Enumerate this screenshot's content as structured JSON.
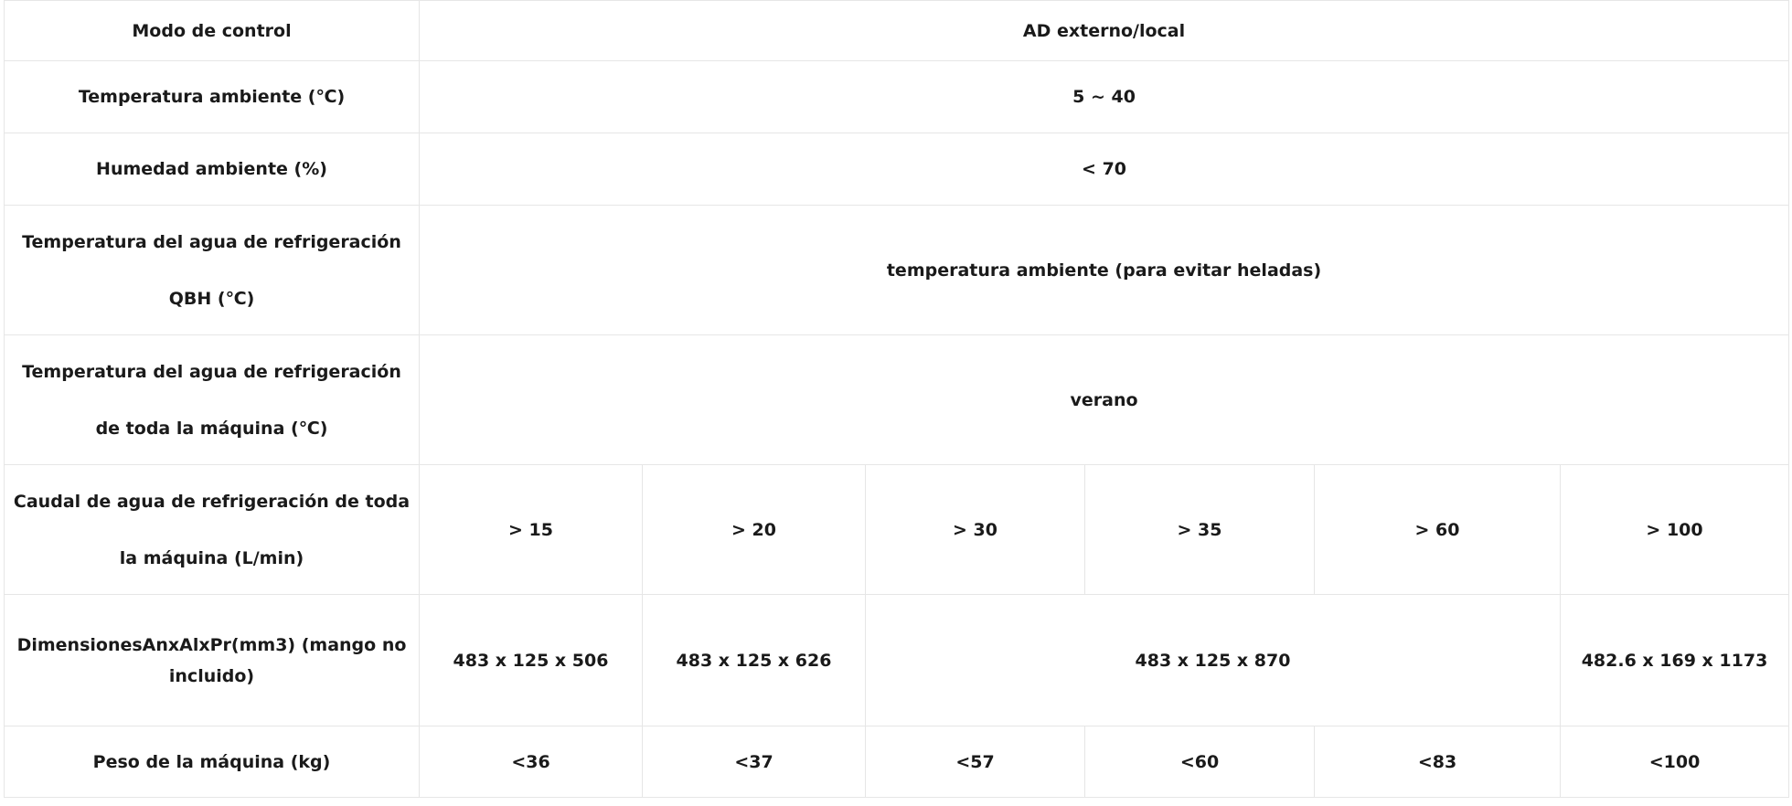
{
  "table": {
    "rows": [
      {
        "label": "Modo de control",
        "values": [
          "AD externo/local"
        ]
      },
      {
        "label": "Temperatura ambiente (℃)",
        "values": [
          "5 ~ 40"
        ]
      },
      {
        "label": "Humedad ambiente  (%)",
        "values": [
          "< 70"
        ]
      },
      {
        "label": "Temperatura del agua de refrigeración QBH (℃)",
        "values": [
          "temperatura ambiente (para evitar heladas)"
        ]
      },
      {
        "label": "Temperatura del agua de refrigeración de toda la máquina (℃)",
        "values": [
          "verano"
        ]
      },
      {
        "label": "Caudal de agua de refrigeración de toda la máquina (L/min)",
        "values": [
          "> 15",
          "> 20",
          "> 30",
          "> 35",
          "> 60",
          "> 100"
        ]
      },
      {
        "label": "DimensionesAnxAlxPr(mm3) (mango no incluido)",
        "values": [
          "483 x 125 x 506",
          "483 x 125 x 626",
          "483 x 125 x 870",
          "482.6 x 169 x 1173"
        ]
      },
      {
        "label": "Peso de la máquina (kg)",
        "values": [
          "<36",
          "<37",
          "<57",
          "<60",
          "<83",
          "<100"
        ]
      }
    ]
  }
}
